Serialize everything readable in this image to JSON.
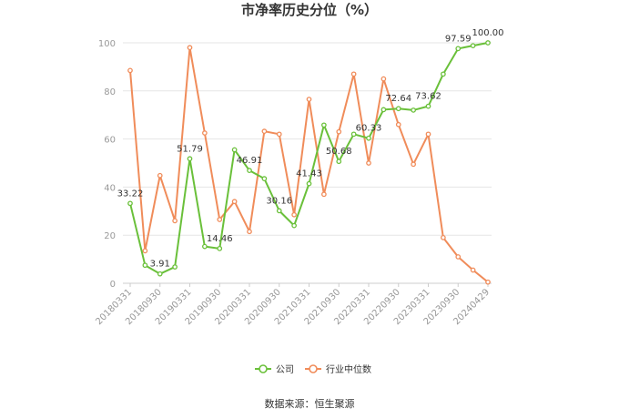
{
  "chart_data": {
    "type": "line",
    "title": "市净率历史分位（%）",
    "xlabel": "",
    "ylabel": "",
    "ylim": [
      0,
      100
    ],
    "yticks": [
      0,
      20,
      40,
      60,
      80,
      100
    ],
    "grid": true,
    "legend_position": "bottom",
    "x_tick_labels": [
      "20180331",
      "20180930",
      "20190331",
      "20190930",
      "20200331",
      "20200930",
      "20210331",
      "20210930",
      "20220331",
      "20220930",
      "20230331",
      "20230930",
      "20240429"
    ],
    "series": [
      {
        "name": "公司",
        "color": "#6ac03a",
        "values": [
          33.22,
          7.5,
          3.91,
          6.8,
          51.79,
          15.3,
          14.46,
          55.5,
          46.91,
          43.5,
          30.16,
          24.0,
          41.43,
          65.8,
          50.68,
          62.0,
          60.33,
          72.2,
          72.64,
          72.0,
          73.62,
          87.0,
          97.59,
          98.8,
          100.0
        ]
      },
      {
        "name": "行业中位数",
        "color": "#f08c5a",
        "values": [
          88.5,
          13.5,
          44.8,
          26.0,
          98.0,
          62.5,
          26.5,
          34.0,
          21.5,
          63.2,
          62.0,
          28.5,
          76.5,
          37.0,
          63.0,
          87.0,
          50.0,
          85.0,
          66.0,
          49.5,
          62.0,
          19.0,
          11.0,
          5.5,
          0.5
        ]
      }
    ],
    "data_labels": [
      {
        "series": 0,
        "index": 0,
        "text": "33.22"
      },
      {
        "series": 0,
        "index": 2,
        "text": "3.91"
      },
      {
        "series": 0,
        "index": 4,
        "text": "51.79"
      },
      {
        "series": 0,
        "index": 6,
        "text": "14.46"
      },
      {
        "series": 0,
        "index": 8,
        "text": "46.91"
      },
      {
        "series": 0,
        "index": 10,
        "text": "30.16"
      },
      {
        "series": 0,
        "index": 12,
        "text": "41.43"
      },
      {
        "series": 0,
        "index": 14,
        "text": "50.68"
      },
      {
        "series": 0,
        "index": 16,
        "text": "60.33"
      },
      {
        "series": 0,
        "index": 18,
        "text": "72.64"
      },
      {
        "series": 0,
        "index": 20,
        "text": "73.62"
      },
      {
        "series": 0,
        "index": 22,
        "text": "97.59"
      },
      {
        "series": 0,
        "index": 24,
        "text": "100.00"
      }
    ]
  },
  "footer": {
    "source": "数据来源：恒生聚源"
  }
}
